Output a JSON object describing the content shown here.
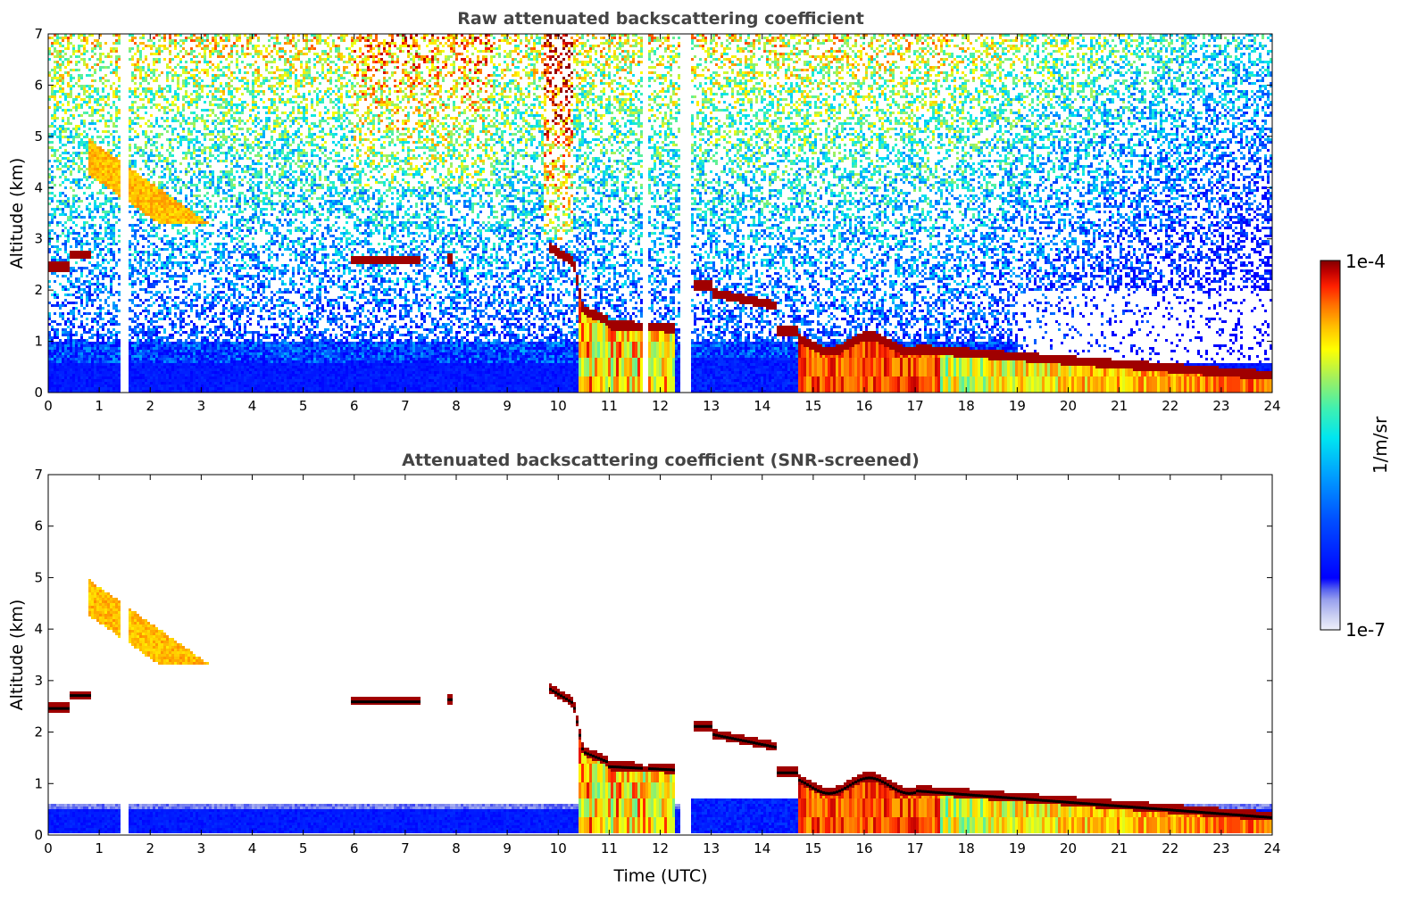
{
  "chart_data": [
    {
      "type": "heatmap",
      "title": "Raw attenuated backscattering coefficient",
      "xlabel": "",
      "ylabel": "Altitude (km)",
      "xlim": [
        0,
        24
      ],
      "ylim": [
        0,
        7
      ],
      "xticks": [
        "0",
        "1",
        "2",
        "3",
        "4",
        "5",
        "6",
        "7",
        "8",
        "9",
        "10",
        "11",
        "12",
        "13",
        "14",
        "15",
        "16",
        "17",
        "18",
        "19",
        "20",
        "21",
        "22",
        "23",
        "24"
      ],
      "yticks": [
        "0",
        "1",
        "2",
        "3",
        "4",
        "5",
        "6",
        "7"
      ],
      "grid": false,
      "data_gaps_utc": [
        [
          1.42,
          1.55
        ],
        [
          11.68,
          11.74
        ],
        [
          12.42,
          12.62
        ]
      ],
      "cloud_layers": [
        {
          "t_start": 0.0,
          "t_end": 0.4,
          "altitude_km": 2.45
        },
        {
          "t_start": 0.4,
          "t_end": 0.85,
          "altitude_km": 2.7
        },
        {
          "t_start": 5.95,
          "t_end": 7.3,
          "altitude_km": 2.58
        },
        {
          "t_start": 7.8,
          "t_end": 7.95,
          "altitude_km": 2.62
        },
        {
          "t_start": 9.8,
          "t_end": 10.3,
          "altitude_km": 2.85
        },
        {
          "t_start": 10.4,
          "t_end": 12.3,
          "altitude_km": 1.3
        },
        {
          "t_start": 12.65,
          "t_end": 14.3,
          "altitude_km": 1.85
        },
        {
          "t_start": 14.7,
          "t_end": 17.0,
          "altitude_km": 1.0
        },
        {
          "t_start": 17.0,
          "t_end": 24.0,
          "altitude_km_start": 0.85,
          "altitude_km_end": 0.33
        }
      ]
    },
    {
      "type": "heatmap",
      "title": "Attenuated backscattering coefficient (SNR-screened)",
      "xlabel": "Time (UTC)",
      "ylabel": "Altitude (km)",
      "xlim": [
        0,
        24
      ],
      "ylim": [
        0,
        7
      ],
      "xticks": [
        "0",
        "1",
        "2",
        "3",
        "4",
        "5",
        "6",
        "7",
        "8",
        "9",
        "10",
        "11",
        "12",
        "13",
        "14",
        "15",
        "16",
        "17",
        "18",
        "19",
        "20",
        "21",
        "22",
        "23",
        "24"
      ],
      "yticks": [
        "0",
        "1",
        "2",
        "3",
        "4",
        "5",
        "6",
        "7"
      ],
      "grid": false
    }
  ],
  "colorbar": {
    "label": "1/m/sr",
    "max_label": "1e-4",
    "min_label": "1e-7",
    "colormap": "jet",
    "colors": [
      "#eef0fa",
      "#c8cdf2",
      "#9aa2ee",
      "#5560f0",
      "#0000ff",
      "#0050ff",
      "#00a0ff",
      "#00e6f0",
      "#40f0b0",
      "#a0f060",
      "#ffff00",
      "#ffc000",
      "#ff7000",
      "#ff2000",
      "#c00000",
      "#800000"
    ]
  }
}
